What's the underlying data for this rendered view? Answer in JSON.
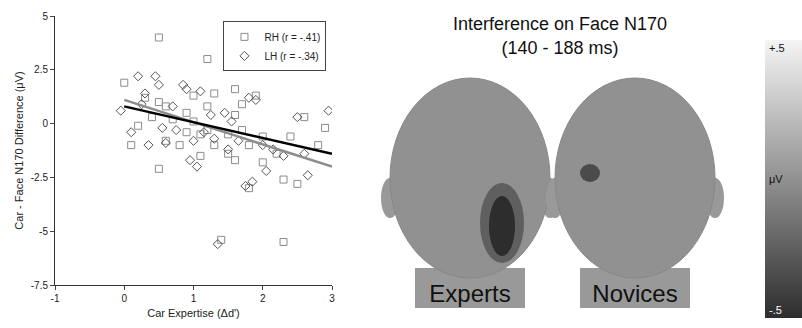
{
  "chart_data": {
    "type": "scatter",
    "x_label": "Car Expertise (Δd')",
    "y_label": "Car - Face N170 Difference (μV)",
    "xlim": [
      -1,
      3
    ],
    "xticks": [
      -1,
      0,
      1,
      2,
      3
    ],
    "ylim": [
      -7.5,
      5
    ],
    "yticks": [
      -7.5,
      -5,
      -2.5,
      0,
      2.5,
      5
    ],
    "grid": false,
    "legend": "top-right",
    "series": [
      {
        "name": "RH (r = -.41)",
        "color": "#8c8c8c",
        "marker": "square-open",
        "x": [
          0.0,
          0.1,
          0.3,
          0.5,
          0.5,
          0.5,
          0.6,
          0.6,
          0.7,
          0.8,
          0.9,
          1.0,
          1.0,
          1.1,
          1.1,
          1.2,
          1.2,
          1.2,
          1.3,
          1.4,
          1.5,
          1.5,
          1.6,
          1.6,
          1.6,
          1.7,
          1.7,
          1.8,
          1.8,
          1.9,
          2.0,
          2.0,
          2.2,
          2.3,
          2.3,
          2.4,
          2.5,
          2.6,
          2.8,
          2.9,
          0.2,
          0.4,
          1.3,
          0.9
        ],
        "values": [
          1.9,
          -1.0,
          1.2,
          4.0,
          1.0,
          -2.1,
          0.8,
          -0.8,
          0.2,
          -1.0,
          0.5,
          1.3,
          0.1,
          -0.5,
          -1.5,
          3.0,
          0.8,
          -0.3,
          -1.0,
          -5.4,
          -0.5,
          -1.4,
          1.6,
          0.4,
          -1.7,
          -0.3,
          0.9,
          -1.0,
          -3.0,
          1.3,
          -1.8,
          -0.6,
          -1.4,
          -5.5,
          -2.6,
          -0.6,
          -2.8,
          0.3,
          -1.0,
          -0.2,
          -0.1,
          0.3,
          1.4,
          -0.4
        ],
        "fit": {
          "x": [
            0,
            3
          ],
          "values": [
            1.1,
            -2.0
          ],
          "color": "#8c8c8c"
        }
      },
      {
        "name": "LH (r = -.34)",
        "color": "#555555",
        "marker": "diamond-open",
        "x": [
          -0.05,
          0.1,
          0.2,
          0.3,
          0.35,
          0.45,
          0.5,
          0.55,
          0.6,
          0.7,
          0.75,
          0.85,
          0.9,
          0.95,
          1.0,
          1.05,
          1.1,
          1.15,
          1.25,
          1.35,
          1.45,
          1.5,
          1.55,
          1.65,
          1.75,
          1.8,
          1.85,
          1.9,
          2.05,
          2.15,
          2.3,
          2.5,
          2.6,
          2.65,
          2.95,
          0.25,
          1.3,
          2.0
        ],
        "values": [
          0.6,
          -0.4,
          2.2,
          1.4,
          -1.0,
          2.2,
          1.8,
          -0.2,
          -0.9,
          0.8,
          -0.3,
          1.8,
          1.6,
          -1.7,
          -0.8,
          -2.0,
          1.5,
          -0.4,
          0.4,
          -5.6,
          0.5,
          -1.2,
          0.1,
          -0.8,
          -2.9,
          1.2,
          -2.7,
          1.1,
          -2.2,
          -1.2,
          -1.5,
          0.3,
          -1.4,
          -2.4,
          0.6,
          0.9,
          -0.7,
          -1.0
        ],
        "fit": {
          "x": [
            0,
            3
          ],
          "values": [
            0.8,
            -1.4
          ],
          "color": "#000000"
        }
      }
    ]
  },
  "topomap": {
    "title": "Interference on Face N170",
    "subtitle": "(140 - 188 ms)",
    "colorbar": {
      "range": [
        -0.5,
        0.5
      ],
      "ticks": [
        {
          "value": 0.5,
          "label": "+.5"
        },
        {
          "value": -0.5,
          "label": "-.5"
        }
      ],
      "title": "μV"
    },
    "maps": [
      {
        "label": "Experts",
        "min": -0.5
      },
      {
        "label": "Novices",
        "min": -0.35
      }
    ]
  }
}
